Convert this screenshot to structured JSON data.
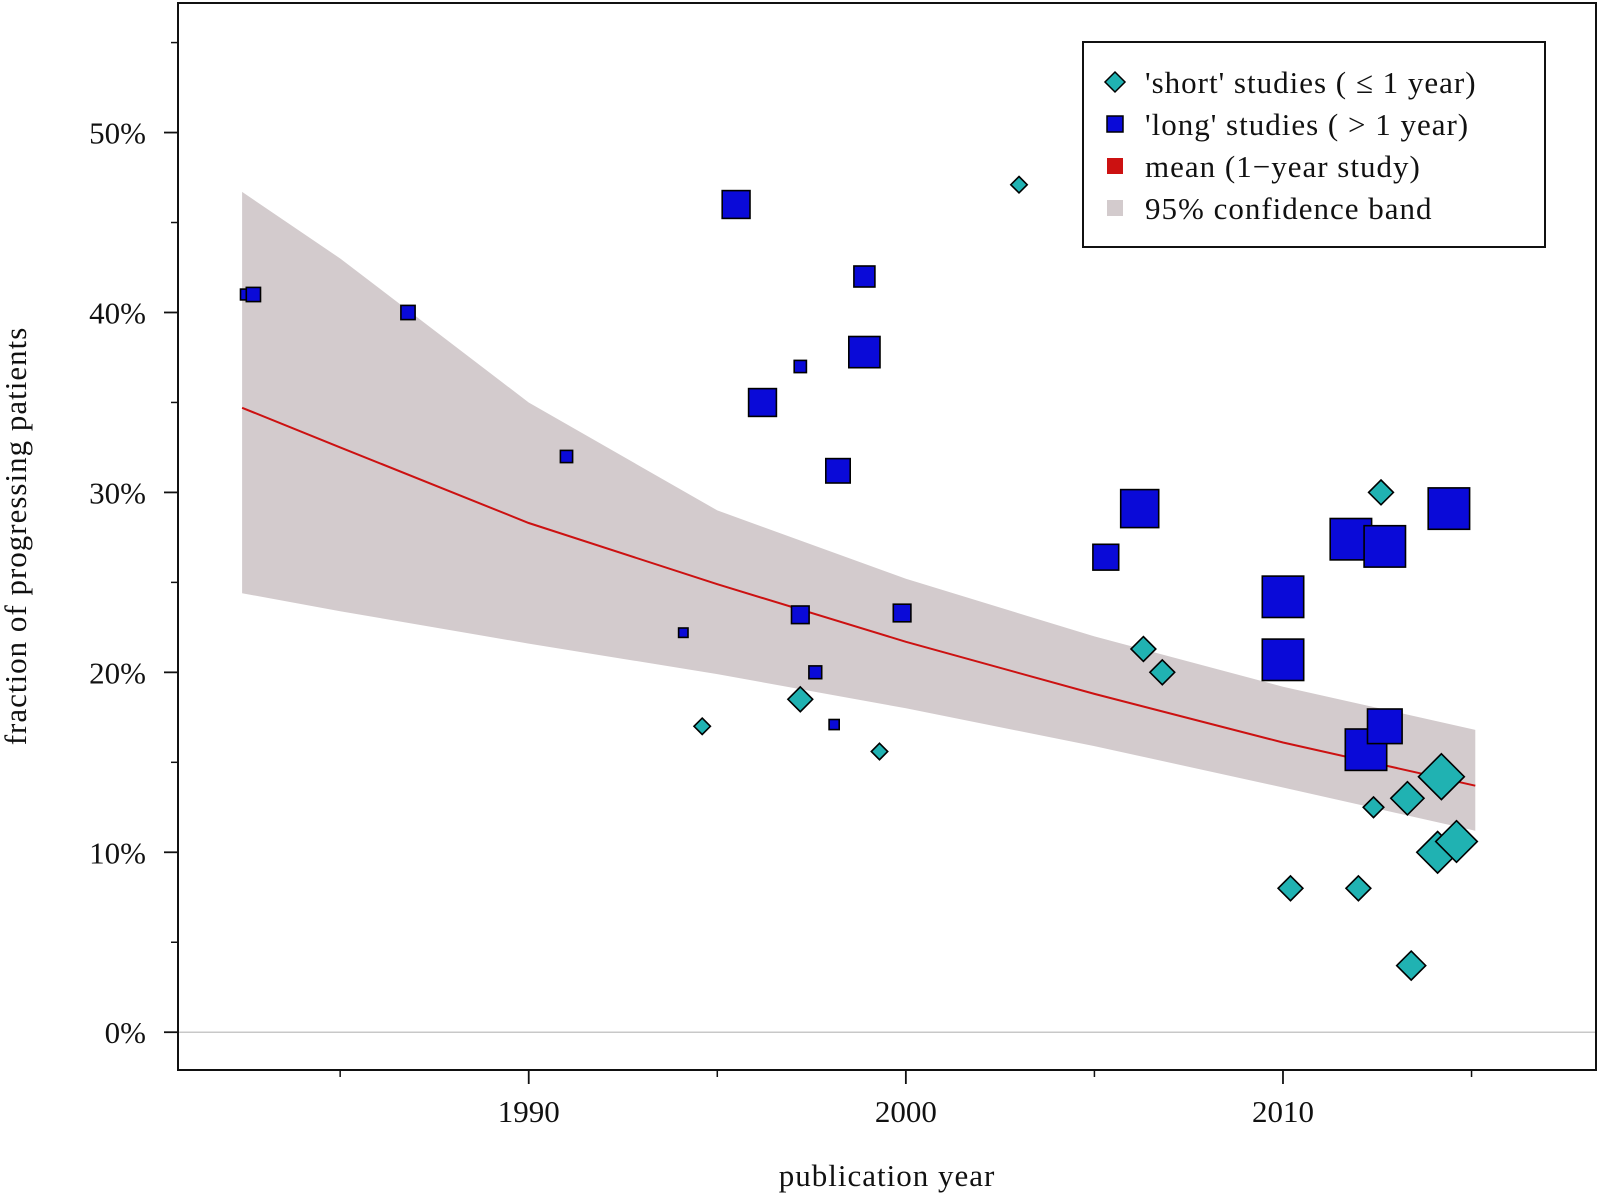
{
  "chart_data": {
    "type": "scatter",
    "xlabel": "publication year",
    "ylabel": "fraction of progressing patients",
    "xlim": [
      1980.7,
      2018.3
    ],
    "ylim": [
      -2.1,
      57.2
    ],
    "x_ticks_major": [
      1990,
      2000,
      2010
    ],
    "x_tick_labels": [
      "1990",
      "2000",
      "2010"
    ],
    "x_ticks_minor": [
      1985,
      1995,
      2005,
      2015
    ],
    "y_ticks_major": [
      0,
      10,
      20,
      30,
      40,
      50
    ],
    "y_tick_labels": [
      "0%",
      "10%",
      "20%",
      "30%",
      "40%",
      "50%"
    ],
    "y_ticks_minor": [
      5,
      15,
      25,
      35,
      45,
      55
    ],
    "reference_line_y": 0,
    "legend": {
      "placement": "top-right",
      "entries": [
        {
          "key": "short",
          "label": "'short' studies ( ≤ 1 year)",
          "marker": "diamond",
          "color": "#20B2B2"
        },
        {
          "key": "long",
          "label": "'long' studies ( > 1 year)",
          "marker": "square",
          "color": "#0A0AD8"
        },
        {
          "key": "mean",
          "label": "mean (1−year study)",
          "marker": "square",
          "color": "#CC1111"
        },
        {
          "key": "band",
          "label": "95% confidence band",
          "marker": "square",
          "color": "#D3CBCD"
        }
      ]
    },
    "series": [
      {
        "name": "'short' studies ( ≤ 1 year)",
        "marker": "diamond",
        "color": "#20B2B2",
        "points": [
          {
            "x": 1994.6,
            "y": 17.0,
            "weight": 1
          },
          {
            "x": 1997.2,
            "y": 18.5,
            "weight": 2
          },
          {
            "x": 1999.3,
            "y": 15.6,
            "weight": 1
          },
          {
            "x": 2003.0,
            "y": 47.1,
            "weight": 1
          },
          {
            "x": 2006.3,
            "y": 21.3,
            "weight": 2
          },
          {
            "x": 2006.8,
            "y": 20.0,
            "weight": 2
          },
          {
            "x": 2010.2,
            "y": 8.0,
            "weight": 2
          },
          {
            "x": 2012.0,
            "y": 8.0,
            "weight": 2
          },
          {
            "x": 2012.4,
            "y": 12.5,
            "weight": 1.5
          },
          {
            "x": 2012.6,
            "y": 30.0,
            "weight": 2
          },
          {
            "x": 2013.3,
            "y": 13.0,
            "weight": 3
          },
          {
            "x": 2013.4,
            "y": 3.7,
            "weight": 2.5
          },
          {
            "x": 2014.1,
            "y": 10.0,
            "weight": 4
          },
          {
            "x": 2014.2,
            "y": 14.2,
            "weight": 4.5
          },
          {
            "x": 2014.6,
            "y": 10.6,
            "weight": 4
          }
        ]
      },
      {
        "name": "'long' studies ( > 1 year)",
        "marker": "square",
        "color": "#0A0AD8",
        "points": [
          {
            "x": 1982.5,
            "y": 41.0,
            "weight": 1
          },
          {
            "x": 1982.7,
            "y": 41.0,
            "weight": 1.5
          },
          {
            "x": 1986.8,
            "y": 40.0,
            "weight": 1.5
          },
          {
            "x": 1991.0,
            "y": 32.0,
            "weight": 1.2
          },
          {
            "x": 1994.1,
            "y": 22.2,
            "weight": 0.8
          },
          {
            "x": 1995.5,
            "y": 46.0,
            "weight": 3.5
          },
          {
            "x": 1996.2,
            "y": 35.0,
            "weight": 3.5
          },
          {
            "x": 1997.2,
            "y": 37.0,
            "weight": 1.2
          },
          {
            "x": 1997.2,
            "y": 23.2,
            "weight": 2
          },
          {
            "x": 1997.6,
            "y": 20.0,
            "weight": 1.3
          },
          {
            "x": 1998.1,
            "y": 17.1,
            "weight": 0.9
          },
          {
            "x": 1998.2,
            "y": 31.2,
            "weight": 3
          },
          {
            "x": 1998.9,
            "y": 42.0,
            "weight": 2.5
          },
          {
            "x": 1998.9,
            "y": 37.8,
            "weight": 4
          },
          {
            "x": 1999.9,
            "y": 23.3,
            "weight": 2
          },
          {
            "x": 2005.3,
            "y": 26.4,
            "weight": 3.2
          },
          {
            "x": 2006.2,
            "y": 29.1,
            "weight": 5
          },
          {
            "x": 2010.0,
            "y": 24.2,
            "weight": 5.5
          },
          {
            "x": 2010.0,
            "y": 20.7,
            "weight": 5.5
          },
          {
            "x": 2011.8,
            "y": 27.4,
            "weight": 5.5
          },
          {
            "x": 2012.2,
            "y": 15.7,
            "weight": 5.5
          },
          {
            "x": 2012.7,
            "y": 17.0,
            "weight": 4.5
          },
          {
            "x": 2012.7,
            "y": 27.0,
            "weight": 5.5
          },
          {
            "x": 2014.4,
            "y": 29.1,
            "weight": 5.5
          }
        ]
      }
    ],
    "mean_line": {
      "name": "mean (1−year study)",
      "color": "#CC1111",
      "x": [
        1982.4,
        1985,
        1990,
        1995,
        2000,
        2005,
        2010,
        2015.1
      ],
      "y": [
        34.7,
        32.5,
        28.3,
        24.9,
        21.7,
        18.8,
        16.1,
        13.7
      ]
    },
    "confidence_band": {
      "name": "95% confidence band",
      "color": "#D3CBCD",
      "x": [
        1982.4,
        1985,
        1990,
        1995,
        2000,
        2005,
        2010,
        2015.1
      ],
      "upper": [
        46.7,
        43.0,
        35.0,
        29.0,
        25.2,
        22.0,
        19.2,
        16.8
      ],
      "lower": [
        24.4,
        23.4,
        21.6,
        19.9,
        18.0,
        15.9,
        13.6,
        11.2
      ]
    }
  }
}
